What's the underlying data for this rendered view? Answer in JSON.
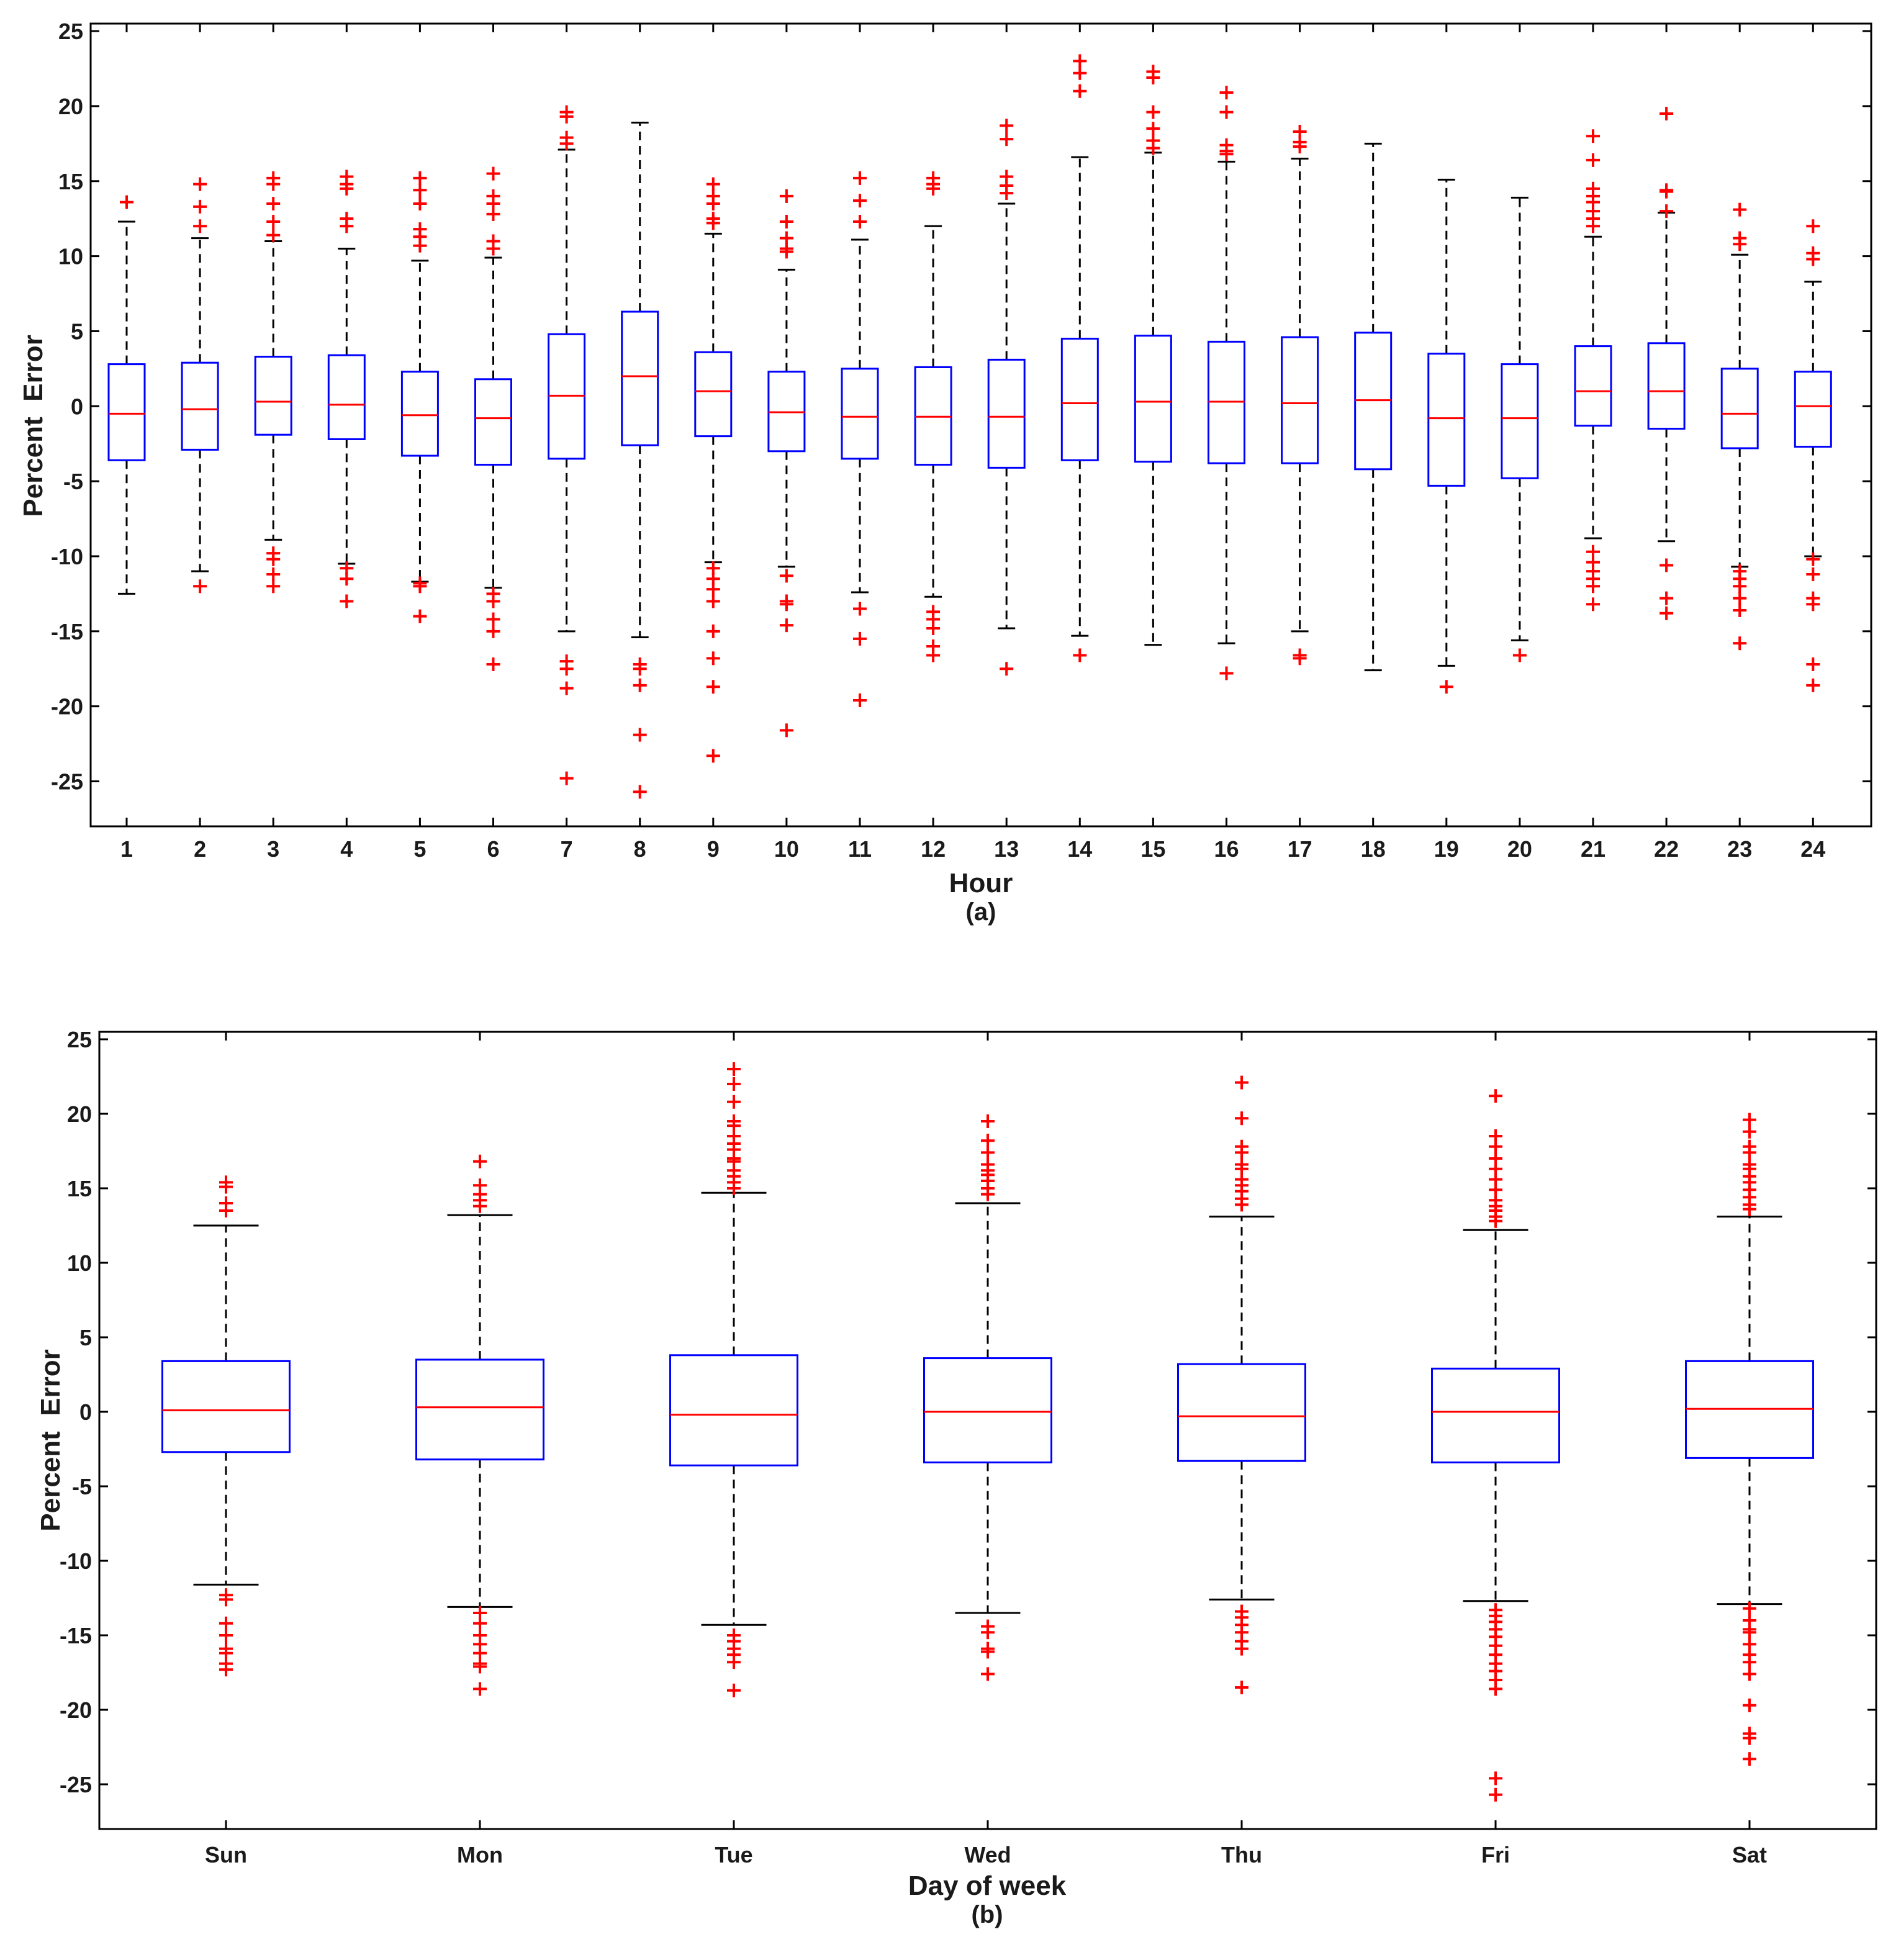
{
  "chart_data": [
    {
      "type": "boxplot",
      "caption": "(a)",
      "xlabel": "Hour",
      "ylabel": "Percent  Error",
      "ylim": [
        -28,
        25.5
      ],
      "yticks": [
        25,
        20,
        15,
        10,
        5,
        0,
        -5,
        -10,
        -15,
        -20,
        -25
      ],
      "colors": {
        "box": "#0000ff",
        "median": "#ff0000",
        "whisker": "#000000",
        "outlier": "#ff0000",
        "axis": "#000000"
      },
      "categories": [
        "1",
        "2",
        "3",
        "4",
        "5",
        "6",
        "7",
        "8",
        "9",
        "10",
        "11",
        "12",
        "13",
        "14",
        "15",
        "16",
        "17",
        "18",
        "19",
        "20",
        "21",
        "22",
        "23",
        "24"
      ],
      "boxes": [
        {
          "q1": -3.6,
          "median": -0.5,
          "q3": 2.8,
          "whisker_low": -12.5,
          "whisker_high": 12.3,
          "outliers": [
            13.6
          ]
        },
        {
          "q1": -2.9,
          "median": -0.2,
          "q3": 2.9,
          "whisker_low": -11.0,
          "whisker_high": 11.2,
          "outliers": [
            14.8,
            13.3,
            12.0,
            -12.0
          ]
        },
        {
          "q1": -1.9,
          "median": 0.3,
          "q3": 3.3,
          "whisker_low": -8.9,
          "whisker_high": 11.0,
          "outliers": [
            15.2,
            14.8,
            13.5,
            12.3,
            11.4,
            -9.8,
            -10.2,
            -11.2,
            -12.0
          ]
        },
        {
          "q1": -2.2,
          "median": 0.1,
          "q3": 3.4,
          "whisker_low": -10.5,
          "whisker_high": 10.5,
          "outliers": [
            15.3,
            14.8,
            14.5,
            12.5,
            12.0,
            -10.8,
            -11.5,
            -13.0
          ]
        },
        {
          "q1": -3.3,
          "median": -0.6,
          "q3": 2.3,
          "whisker_low": -11.7,
          "whisker_high": 9.7,
          "outliers": [
            15.2,
            14.4,
            13.5,
            11.8,
            11.3,
            10.7,
            -11.8,
            -12.0,
            -14.0
          ]
        },
        {
          "q1": -3.9,
          "median": -0.8,
          "q3": 1.8,
          "whisker_low": -12.1,
          "whisker_high": 9.9,
          "outliers": [
            15.5,
            14.0,
            13.5,
            12.8,
            11.0,
            10.5,
            -12.5,
            -13.0,
            -14.2,
            -15.0,
            -17.2
          ]
        },
        {
          "q1": -3.5,
          "median": 0.7,
          "q3": 4.8,
          "whisker_low": -15.0,
          "whisker_high": 17.1,
          "outliers": [
            19.6,
            19.3,
            17.9,
            17.5,
            -17.0,
            -17.5,
            -18.8,
            -24.8
          ]
        },
        {
          "q1": -2.6,
          "median": 2.0,
          "q3": 6.3,
          "whisker_low": -15.4,
          "whisker_high": 18.9,
          "outliers": [
            -17.2,
            -17.5,
            -18.6,
            -21.9,
            -25.7
          ]
        },
        {
          "q1": -2.0,
          "median": 1.0,
          "q3": 3.6,
          "whisker_low": -10.4,
          "whisker_high": 11.5,
          "outliers": [
            14.8,
            14.0,
            13.5,
            12.5,
            12.2,
            -10.8,
            -11.5,
            -12.2,
            -13.0,
            -15.0,
            -16.8,
            -18.7,
            -23.3
          ]
        },
        {
          "q1": -3.0,
          "median": -0.4,
          "q3": 2.3,
          "whisker_low": -10.7,
          "whisker_high": 9.1,
          "outliers": [
            14.0,
            12.3,
            11.2,
            10.5,
            10.3,
            -11.3,
            -13.0,
            -13.2,
            -14.6,
            -21.6
          ]
        },
        {
          "q1": -3.5,
          "median": -0.7,
          "q3": 2.5,
          "whisker_low": -12.4,
          "whisker_high": 11.1,
          "outliers": [
            15.2,
            13.7,
            12.3,
            -13.5,
            -15.5,
            -19.6
          ]
        },
        {
          "q1": -3.9,
          "median": -0.7,
          "q3": 2.6,
          "whisker_low": -12.7,
          "whisker_high": 12.0,
          "outliers": [
            15.2,
            14.8,
            14.5,
            -13.7,
            -14.2,
            -14.8,
            -16.0,
            -16.6
          ]
        },
        {
          "q1": -4.1,
          "median": -0.7,
          "q3": 3.1,
          "whisker_low": -14.8,
          "whisker_high": 13.5,
          "outliers": [
            18.7,
            17.8,
            15.3,
            14.7,
            14.2,
            -17.5
          ]
        },
        {
          "q1": -3.6,
          "median": 0.2,
          "q3": 4.5,
          "whisker_low": -15.3,
          "whisker_high": 16.6,
          "outliers": [
            23.0,
            22.2,
            21.0,
            -16.6
          ]
        },
        {
          "q1": -3.7,
          "median": 0.3,
          "q3": 4.7,
          "whisker_low": -15.9,
          "whisker_high": 16.9,
          "outliers": [
            22.3,
            21.9,
            19.6,
            18.5,
            17.7,
            17.2
          ]
        },
        {
          "q1": -3.8,
          "median": 0.3,
          "q3": 4.3,
          "whisker_low": -15.8,
          "whisker_high": 16.3,
          "outliers": [
            20.9,
            19.6,
            17.4,
            17.0,
            16.8,
            -17.8
          ]
        },
        {
          "q1": -3.8,
          "median": 0.2,
          "q3": 4.6,
          "whisker_low": -15.0,
          "whisker_high": 16.5,
          "outliers": [
            18.3,
            17.6,
            17.3,
            -16.6,
            -16.8
          ]
        },
        {
          "q1": -4.2,
          "median": 0.4,
          "q3": 4.9,
          "whisker_low": -17.6,
          "whisker_high": 17.5,
          "outliers": []
        },
        {
          "q1": -5.3,
          "median": -0.8,
          "q3": 3.5,
          "whisker_low": -17.3,
          "whisker_high": 15.1,
          "outliers": [
            -18.7
          ]
        },
        {
          "q1": -4.8,
          "median": -0.8,
          "q3": 2.8,
          "whisker_low": -15.6,
          "whisker_high": 13.9,
          "outliers": [
            -16.6
          ]
        },
        {
          "q1": -1.3,
          "median": 1.0,
          "q3": 4.0,
          "whisker_low": -8.8,
          "whisker_high": 11.3,
          "outliers": [
            18.0,
            16.4,
            14.5,
            14.0,
            13.6,
            13.0,
            12.5,
            12.0,
            -9.7,
            -10.4,
            -11.0,
            -11.5,
            -12.0,
            -13.2
          ]
        },
        {
          "q1": -1.5,
          "median": 1.0,
          "q3": 4.2,
          "whisker_low": -9.0,
          "whisker_high": 12.9,
          "outliers": [
            19.5,
            14.4,
            14.3,
            13.0,
            -10.6,
            -12.8,
            -13.8
          ]
        },
        {
          "q1": -2.8,
          "median": -0.5,
          "q3": 2.5,
          "whisker_low": -10.7,
          "whisker_high": 10.1,
          "outliers": [
            13.1,
            11.2,
            10.8,
            -11.0,
            -11.5,
            -12.0,
            -12.8,
            -13.6,
            -15.8
          ]
        },
        {
          "q1": -2.7,
          "median": 0.0,
          "q3": 2.3,
          "whisker_low": -10.0,
          "whisker_high": 8.3,
          "outliers": [
            12.0,
            10.2,
            9.8,
            -10.2,
            -11.2,
            -12.8,
            -13.2,
            -17.2,
            -18.6
          ]
        }
      ]
    },
    {
      "type": "boxplot",
      "caption": "(b)",
      "xlabel": "Day of week",
      "ylabel": "Percent  Error",
      "ylim": [
        -28,
        25.5
      ],
      "yticks": [
        25,
        20,
        15,
        10,
        5,
        0,
        -5,
        -10,
        -15,
        -20,
        -25
      ],
      "colors": {
        "box": "#0000ff",
        "median": "#ff0000",
        "whisker": "#000000",
        "outlier": "#ff0000",
        "axis": "#000000"
      },
      "categories": [
        "Sun",
        "Mon",
        "Tue",
        "Wed",
        "Thu",
        "Fri",
        "Sat"
      ],
      "boxes": [
        {
          "q1": -2.7,
          "median": 0.1,
          "q3": 3.4,
          "whisker_low": -11.6,
          "whisker_high": 12.5,
          "outliers": [
            15.4,
            15.1,
            14.0,
            13.5,
            -12.3,
            -12.6,
            -14.2,
            -15.0,
            -15.9,
            -16.2,
            -16.9,
            -17.3
          ]
        },
        {
          "q1": -3.2,
          "median": 0.3,
          "q3": 3.5,
          "whisker_low": -13.1,
          "whisker_high": 13.2,
          "outliers": [
            16.8,
            15.2,
            14.6,
            14.2,
            13.8,
            -13.5,
            -14.2,
            -15.0,
            -15.6,
            -16.2,
            -16.9,
            -17.1,
            -18.6
          ]
        },
        {
          "q1": -3.6,
          "median": -0.2,
          "q3": 3.8,
          "whisker_low": -14.3,
          "whisker_high": 14.7,
          "outliers": [
            23.0,
            22.0,
            20.8,
            19.5,
            19.2,
            18.5,
            18.0,
            17.6,
            17.0,
            16.8,
            16.2,
            15.8,
            15.4,
            15.0,
            -15.0,
            -15.4,
            -15.9,
            -16.3,
            -16.8,
            -18.7
          ]
        },
        {
          "q1": -3.4,
          "median": 0.0,
          "q3": 3.6,
          "whisker_low": -13.5,
          "whisker_high": 14.0,
          "outliers": [
            19.5,
            18.2,
            17.4,
            16.6,
            16.2,
            15.9,
            15.5,
            15.0,
            14.6,
            -14.4,
            -14.8,
            -15.9,
            -16.1,
            -17.6
          ]
        },
        {
          "q1": -3.3,
          "median": -0.3,
          "q3": 3.2,
          "whisker_low": -12.6,
          "whisker_high": 13.1,
          "outliers": [
            22.1,
            19.7,
            17.8,
            17.4,
            16.6,
            16.3,
            15.6,
            15.2,
            14.8,
            14.3,
            13.9,
            -13.4,
            -13.8,
            -14.3,
            -14.8,
            -15.4,
            -15.9,
            -18.5
          ]
        },
        {
          "q1": -3.4,
          "median": 0.0,
          "q3": 2.9,
          "whisker_low": -12.7,
          "whisker_high": 12.2,
          "outliers": [
            21.2,
            18.5,
            17.8,
            17.0,
            16.3,
            15.6,
            14.9,
            14.2,
            13.8,
            13.5,
            13.1,
            12.8,
            -13.3,
            -13.7,
            -14.1,
            -14.6,
            -15.1,
            -15.7,
            -16.3,
            -16.9,
            -17.4,
            -18.0,
            -18.6,
            -24.6,
            -25.7
          ]
        },
        {
          "q1": -3.1,
          "median": 0.2,
          "q3": 3.4,
          "whisker_low": -12.9,
          "whisker_high": 13.1,
          "outliers": [
            19.6,
            18.8,
            17.8,
            17.4,
            16.6,
            16.3,
            15.8,
            15.4,
            14.9,
            14.4,
            13.9,
            13.6,
            -13.2,
            -14.0,
            -14.6,
            -14.8,
            -15.6,
            -16.3,
            -16.8,
            -17.6,
            -19.7,
            -21.6,
            -21.9,
            -23.3
          ]
        }
      ]
    }
  ]
}
